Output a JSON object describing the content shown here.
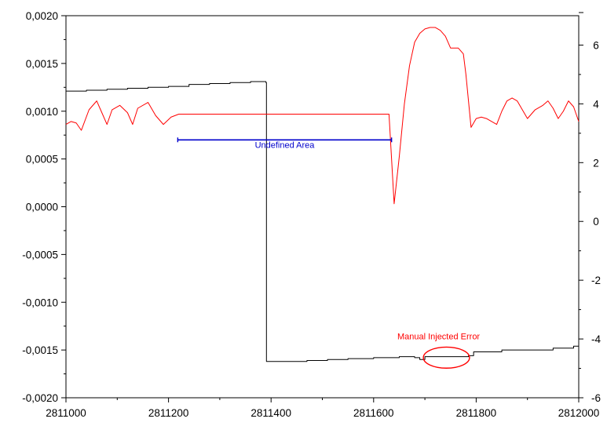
{
  "chart_data": {
    "type": "line",
    "title": "",
    "xlabel": "",
    "ylabel": "",
    "y2label": "",
    "grid": false,
    "legend": "none",
    "xlim": [
      2811000,
      2812000
    ],
    "ylim": [
      -0.002,
      0.002
    ],
    "y2lim": [
      -6,
      7
    ],
    "x_ticks": [
      2811000,
      2811200,
      2811400,
      2811600,
      2811800,
      2812000
    ],
    "x_tick_labels": [
      "2811000",
      "2811200",
      "2811400",
      "2811600",
      "2811800",
      "2812000"
    ],
    "y_ticks": [
      0.002,
      0.0015,
      0.001,
      0.0005,
      0.0,
      -0.0005,
      -0.001,
      -0.0015,
      -0.002
    ],
    "y_tick_labels": [
      "0,0020",
      "0,0015",
      "0,0010",
      "0,0005",
      "0,0000",
      "-0,0005",
      "-0,0010",
      "-0,0015",
      "-0,0020"
    ],
    "y2_ticks": [
      6,
      4,
      2,
      0,
      -2,
      -4,
      -6
    ],
    "y2_tick_labels": [
      "6",
      "4",
      "2",
      "0",
      "-2",
      "-4",
      "-6"
    ],
    "series": [
      {
        "axis": "left",
        "color": "#000000",
        "step": true,
        "x": [
          2811000,
          2811040,
          2811080,
          2811120,
          2811160,
          2811200,
          2811240,
          2811280,
          2811320,
          2811360,
          2811390,
          2811391,
          2811430,
          2811470,
          2811510,
          2811550,
          2811600,
          2811650,
          2811680,
          2811690,
          2811700,
          2811750,
          2811785,
          2811795,
          2811850,
          2811900,
          2811950,
          2811990,
          2812000
        ],
        "y": [
          0.00121,
          0.00122,
          0.00123,
          0.00124,
          0.00125,
          0.00126,
          0.00128,
          0.00129,
          0.0013,
          0.00131,
          0.0013,
          -0.00162,
          -0.00162,
          -0.00161,
          -0.0016,
          -0.00159,
          -0.00158,
          -0.00157,
          -0.00158,
          -0.0016,
          -0.00157,
          -0.00157,
          -0.00156,
          -0.00152,
          -0.0015,
          -0.0015,
          -0.00148,
          -0.00146,
          -0.00145
        ]
      },
      {
        "axis": "right",
        "color": "#ff0000",
        "step": false,
        "x": [
          2811000,
          2811010,
          2811020,
          2811030,
          2811045,
          2811060,
          2811070,
          2811080,
          2811090,
          2811105,
          2811120,
          2811130,
          2811140,
          2811160,
          2811175,
          2811190,
          2811205,
          2811220,
          2811220,
          2811500,
          2811630,
          2811640,
          2811650,
          2811660,
          2811670,
          2811680,
          2811690,
          2811700,
          2811710,
          2811720,
          2811730,
          2811740,
          2811750,
          2811765,
          2811775,
          2811780,
          2811790,
          2811800,
          2811810,
          2811820,
          2811840,
          2811850,
          2811860,
          2811870,
          2811880,
          2811890,
          2811900,
          2811915,
          2811930,
          2811940,
          2811950,
          2811960,
          2811970,
          2811980,
          2811990,
          2812000
        ],
        "y": [
          3.3,
          3.4,
          3.35,
          3.1,
          3.8,
          4.1,
          3.7,
          3.3,
          3.8,
          3.95,
          3.7,
          3.3,
          3.85,
          4.05,
          3.6,
          3.3,
          3.55,
          3.65,
          3.65,
          3.65,
          3.65,
          0.6,
          2.2,
          4.0,
          5.3,
          6.1,
          6.4,
          6.55,
          6.6,
          6.6,
          6.5,
          6.3,
          5.9,
          5.9,
          5.7,
          5.0,
          3.2,
          3.5,
          3.55,
          3.5,
          3.3,
          3.75,
          4.1,
          4.2,
          4.1,
          3.8,
          3.5,
          3.8,
          3.95,
          4.1,
          3.85,
          3.5,
          3.75,
          4.1,
          3.9,
          3.4
        ]
      }
    ],
    "annotations": [
      {
        "type": "range-bar",
        "axis": "left",
        "text": "Undefined Area",
        "color": "#0000cc",
        "x1": 2811218,
        "x2": 2811635,
        "y": 0.0007
      },
      {
        "type": "ellipse",
        "axis": "left",
        "text": "Manual Injected Error",
        "color": "#ff0000",
        "cx": 2811742,
        "cy": -0.00158,
        "rx": 45,
        "ry": 0.00011
      }
    ]
  }
}
